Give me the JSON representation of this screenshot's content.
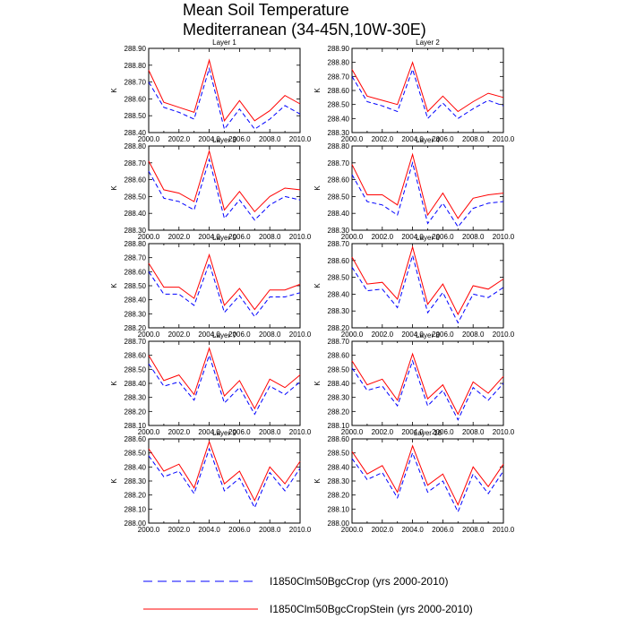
{
  "figure": {
    "title_line1": "Mean Soil Temperature",
    "title_line2": "Mediterranean (34-45N,10W-30E)"
  },
  "legend": [
    {
      "label": "I1850Clm50BgcCrop (yrs 2000-2010)",
      "color": "#0000ff",
      "style": "dashed"
    },
    {
      "label": "I1850Clm50BgcCropStein (yrs 2000-2010)",
      "color": "#ff0000",
      "style": "solid"
    }
  ],
  "chart_data": [
    {
      "type": "line",
      "title": "Layer 1",
      "ylabel": "K",
      "xlim": [
        2000,
        2010
      ],
      "ylim": [
        288.4,
        288.9
      ],
      "x": [
        2000,
        2001,
        2002,
        2003,
        2004,
        2005,
        2006,
        2007,
        2008,
        2009,
        2010
      ],
      "xticks": [
        "2000.0",
        "2002.0",
        "2004.0",
        "2006.0",
        "2008.0",
        "2010.0"
      ],
      "yticks": [
        "288.40",
        "288.50",
        "288.60",
        "288.70",
        "288.80",
        "288.90"
      ],
      "series": [
        {
          "name": "I1850Clm50BgcCrop (yrs 2000-2010)",
          "values": [
            288.7,
            288.55,
            288.52,
            288.48,
            288.78,
            288.42,
            288.54,
            288.42,
            288.48,
            288.56,
            288.51
          ]
        },
        {
          "name": "I1850Clm50BgcCropStein (yrs 2000-2010)",
          "values": [
            288.77,
            288.58,
            288.55,
            288.52,
            288.83,
            288.47,
            288.59,
            288.47,
            288.53,
            288.62,
            288.57
          ]
        }
      ]
    },
    {
      "type": "line",
      "title": "Layer 2",
      "ylabel": "K",
      "xlim": [
        2000,
        2010
      ],
      "ylim": [
        288.3,
        288.9
      ],
      "x": [
        2000,
        2001,
        2002,
        2003,
        2004,
        2005,
        2006,
        2007,
        2008,
        2009,
        2010
      ],
      "xticks": [
        "2000.0",
        "2002.0",
        "2004.0",
        "2006.0",
        "2008.0",
        "2010.0"
      ],
      "yticks": [
        "288.30",
        "288.40",
        "288.50",
        "288.60",
        "288.70",
        "288.80",
        "288.90"
      ],
      "series": [
        {
          "name": "I1850Clm50BgcCrop (yrs 2000-2010)",
          "values": [
            288.7,
            288.52,
            288.49,
            288.45,
            288.75,
            288.4,
            288.51,
            288.4,
            288.47,
            288.53,
            288.49
          ]
        },
        {
          "name": "I1850Clm50BgcCropStein (yrs 2000-2010)",
          "values": [
            288.75,
            288.56,
            288.53,
            288.5,
            288.8,
            288.45,
            288.56,
            288.45,
            288.52,
            288.58,
            288.55
          ]
        }
      ]
    },
    {
      "type": "line",
      "title": "Layer 3",
      "ylabel": "K",
      "xlim": [
        2000,
        2010
      ],
      "ylim": [
        288.3,
        288.8
      ],
      "x": [
        2000,
        2001,
        2002,
        2003,
        2004,
        2005,
        2006,
        2007,
        2008,
        2009,
        2010
      ],
      "xticks": [
        "2000.0",
        "2002.0",
        "2004.0",
        "2006.0",
        "2008.0",
        "2010.0"
      ],
      "yticks": [
        "288.30",
        "288.40",
        "288.50",
        "288.60",
        "288.70",
        "288.80"
      ],
      "series": [
        {
          "name": "I1850Clm50BgcCrop (yrs 2000-2010)",
          "values": [
            288.65,
            288.49,
            288.47,
            288.42,
            288.72,
            288.37,
            288.48,
            288.36,
            288.45,
            288.5,
            288.48
          ]
        },
        {
          "name": "I1850Clm50BgcCropStein (yrs 2000-2010)",
          "values": [
            288.71,
            288.54,
            288.52,
            288.47,
            288.77,
            288.42,
            288.53,
            288.41,
            288.5,
            288.55,
            288.54
          ]
        }
      ]
    },
    {
      "type": "line",
      "title": "Layer 4",
      "ylabel": "K",
      "xlim": [
        2000,
        2010
      ],
      "ylim": [
        288.3,
        288.8
      ],
      "x": [
        2000,
        2001,
        2002,
        2003,
        2004,
        2005,
        2006,
        2007,
        2008,
        2009,
        2010
      ],
      "xticks": [
        "2000.0",
        "2002.0",
        "2004.0",
        "2006.0",
        "2008.0",
        "2010.0"
      ],
      "yticks": [
        "288.30",
        "288.40",
        "288.50",
        "288.60",
        "288.70",
        "288.80"
      ],
      "series": [
        {
          "name": "I1850Clm50BgcCrop (yrs 2000-2010)",
          "values": [
            288.63,
            288.47,
            288.45,
            288.39,
            288.7,
            288.34,
            288.46,
            288.32,
            288.43,
            288.46,
            288.47
          ]
        },
        {
          "name": "I1850Clm50BgcCropStein (yrs 2000-2010)",
          "values": [
            288.69,
            288.51,
            288.51,
            288.45,
            288.75,
            288.39,
            288.52,
            288.37,
            288.49,
            288.51,
            288.52
          ]
        }
      ]
    },
    {
      "type": "line",
      "title": "Layer 5",
      "ylabel": "K",
      "xlim": [
        2000,
        2010
      ],
      "ylim": [
        288.2,
        288.8
      ],
      "x": [
        2000,
        2001,
        2002,
        2003,
        2004,
        2005,
        2006,
        2007,
        2008,
        2009,
        2010
      ],
      "xticks": [
        "2000.0",
        "2002.0",
        "2004.0",
        "2006.0",
        "2008.0",
        "2010.0"
      ],
      "yticks": [
        "288.20",
        "288.30",
        "288.40",
        "288.50",
        "288.60",
        "288.70",
        "288.80"
      ],
      "series": [
        {
          "name": "I1850Clm50BgcCrop (yrs 2000-2010)",
          "values": [
            288.6,
            288.44,
            288.44,
            288.36,
            288.66,
            288.31,
            288.43,
            288.28,
            288.42,
            288.42,
            288.45
          ]
        },
        {
          "name": "I1850Clm50BgcCropStein (yrs 2000-2010)",
          "values": [
            288.66,
            288.49,
            288.49,
            288.41,
            288.72,
            288.36,
            288.48,
            288.33,
            288.47,
            288.47,
            288.51
          ]
        }
      ]
    },
    {
      "type": "line",
      "title": "Layer 6",
      "ylabel": "K",
      "xlim": [
        2000,
        2010
      ],
      "ylim": [
        288.2,
        288.7
      ],
      "x": [
        2000,
        2001,
        2002,
        2003,
        2004,
        2005,
        2006,
        2007,
        2008,
        2009,
        2010
      ],
      "xticks": [
        "2000.0",
        "2002.0",
        "2004.0",
        "2006.0",
        "2008.0",
        "2010.0"
      ],
      "yticks": [
        "288.20",
        "288.30",
        "288.40",
        "288.50",
        "288.60",
        "288.70"
      ],
      "series": [
        {
          "name": "I1850Clm50BgcCrop (yrs 2000-2010)",
          "values": [
            288.56,
            288.42,
            288.43,
            288.32,
            288.63,
            288.29,
            288.41,
            288.23,
            288.4,
            288.38,
            288.44
          ]
        },
        {
          "name": "I1850Clm50BgcCropStein (yrs 2000-2010)",
          "values": [
            288.62,
            288.46,
            288.47,
            288.37,
            288.68,
            288.34,
            288.46,
            288.28,
            288.45,
            288.43,
            288.49
          ]
        }
      ]
    },
    {
      "type": "line",
      "title": "Layer 7",
      "ylabel": "K",
      "xlim": [
        2000,
        2010
      ],
      "ylim": [
        288.1,
        288.7
      ],
      "x": [
        2000,
        2001,
        2002,
        2003,
        2004,
        2005,
        2006,
        2007,
        2008,
        2009,
        2010
      ],
      "xticks": [
        "2000.0",
        "2002.0",
        "2004.0",
        "2006.0",
        "2008.0",
        "2010.0"
      ],
      "yticks": [
        "288.10",
        "288.20",
        "288.30",
        "288.40",
        "288.50",
        "288.60",
        "288.70"
      ],
      "series": [
        {
          "name": "I1850Clm50BgcCrop (yrs 2000-2010)",
          "values": [
            288.54,
            288.38,
            288.41,
            288.28,
            288.6,
            288.26,
            288.37,
            288.18,
            288.38,
            288.32,
            288.41
          ]
        },
        {
          "name": "I1850Clm50BgcCropStein (yrs 2000-2010)",
          "values": [
            288.6,
            288.42,
            288.46,
            288.32,
            288.65,
            288.31,
            288.42,
            288.22,
            288.43,
            288.37,
            288.46
          ]
        }
      ]
    },
    {
      "type": "line",
      "title": "Layer 8",
      "ylabel": "K",
      "xlim": [
        2000,
        2010
      ],
      "ylim": [
        288.1,
        288.7
      ],
      "x": [
        2000,
        2001,
        2002,
        2003,
        2004,
        2005,
        2006,
        2007,
        2008,
        2009,
        2010
      ],
      "xticks": [
        "2000.0",
        "2002.0",
        "2004.0",
        "2006.0",
        "2008.0",
        "2010.0"
      ],
      "yticks": [
        "288.10",
        "288.20",
        "288.30",
        "288.40",
        "288.50",
        "288.60",
        "288.70"
      ],
      "series": [
        {
          "name": "I1850Clm50BgcCrop (yrs 2000-2010)",
          "values": [
            288.51,
            288.35,
            288.38,
            288.24,
            288.56,
            288.24,
            288.35,
            288.14,
            288.37,
            288.28,
            288.4
          ]
        },
        {
          "name": "I1850Clm50BgcCropStein (yrs 2000-2010)",
          "values": [
            288.56,
            288.39,
            288.43,
            288.28,
            288.61,
            288.29,
            288.39,
            288.18,
            288.41,
            288.33,
            288.45
          ]
        }
      ]
    },
    {
      "type": "line",
      "title": "Layer 9",
      "ylabel": "K",
      "xlim": [
        2000,
        2010
      ],
      "ylim": [
        288.0,
        288.6
      ],
      "x": [
        2000,
        2001,
        2002,
        2003,
        2004,
        2005,
        2006,
        2007,
        2008,
        2009,
        2010
      ],
      "xticks": [
        "2000.0",
        "2002.0",
        "2004.0",
        "2006.0",
        "2008.0",
        "2010.0"
      ],
      "yticks": [
        "288.00",
        "288.10",
        "288.20",
        "288.30",
        "288.40",
        "288.50",
        "288.60"
      ],
      "series": [
        {
          "name": "I1850Clm50BgcCrop (yrs 2000-2010)",
          "values": [
            288.48,
            288.33,
            288.37,
            288.21,
            288.53,
            288.23,
            288.32,
            288.11,
            288.36,
            288.23,
            288.39
          ]
        },
        {
          "name": "I1850Clm50BgcCropStein (yrs 2000-2010)",
          "values": [
            288.53,
            288.37,
            288.42,
            288.25,
            288.58,
            288.28,
            288.37,
            288.16,
            288.4,
            288.28,
            288.44
          ]
        }
      ]
    },
    {
      "type": "line",
      "title": "Layer 10",
      "ylabel": "K",
      "xlim": [
        2000,
        2010
      ],
      "ylim": [
        288.0,
        288.6
      ],
      "x": [
        2000,
        2001,
        2002,
        2003,
        2004,
        2005,
        2006,
        2007,
        2008,
        2009,
        2010
      ],
      "xticks": [
        "2000.0",
        "2002.0",
        "2004.0",
        "2006.0",
        "2008.0",
        "2010.0"
      ],
      "yticks": [
        "288.00",
        "288.10",
        "288.20",
        "288.30",
        "288.40",
        "288.50",
        "288.60"
      ],
      "series": [
        {
          "name": "I1850Clm50BgcCrop (yrs 2000-2010)",
          "values": [
            288.46,
            288.31,
            288.36,
            288.18,
            288.5,
            288.22,
            288.3,
            288.08,
            288.35,
            288.21,
            288.37
          ]
        },
        {
          "name": "I1850Clm50BgcCropStein (yrs 2000-2010)",
          "values": [
            288.51,
            288.35,
            288.41,
            288.22,
            288.55,
            288.27,
            288.35,
            288.13,
            288.4,
            288.26,
            288.42
          ]
        }
      ]
    }
  ]
}
